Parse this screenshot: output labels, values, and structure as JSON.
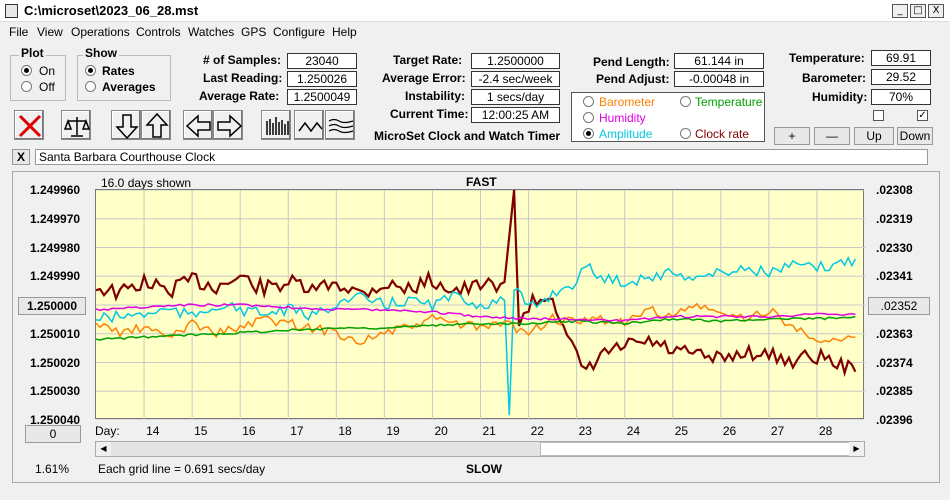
{
  "window": {
    "title": "C:\\microset\\2023_06_28.mst",
    "buttons": [
      "_",
      "□",
      "X"
    ]
  },
  "menu": [
    "File",
    "View",
    "Operations",
    "Controls",
    "Watches",
    "GPS",
    "Configure",
    "Help"
  ],
  "plot_group": {
    "title": "Plot",
    "options": [
      "On",
      "Off"
    ],
    "selected": "On"
  },
  "show_group": {
    "title": "Show",
    "options": [
      "Rates",
      "Averages"
    ],
    "selected": "Rates"
  },
  "stats": {
    "samples_label": "# of Samples:",
    "samples": "23040",
    "last_label": "Last Reading:",
    "last": "1.250026",
    "avg_label": "Average Rate:",
    "avg": "1.2500049",
    "target_label": "Target Rate:",
    "target": "1.2500000",
    "avgerr_label": "Average Error:",
    "avgerr": "-2.4 sec/week",
    "instab_label": "Instability:",
    "instab": "1 secs/day",
    "time_label": "Current Time:",
    "time": "12:00:25 AM",
    "pend_len_label": "Pend Length:",
    "pend_len": "61.144 in",
    "pend_adj_label": "Pend Adjust:",
    "pend_adj": "-0.00048 in",
    "temp_label": "Temperature:",
    "temp": "69.91",
    "baro_label": "Barometer:",
    "baro": "29.52",
    "hum_label": "Humidity:",
    "hum": "70%"
  },
  "app_name": "MicroSet Clock and Watch Timer",
  "series_options": [
    {
      "label": "Barometer",
      "color": "#ff8000",
      "selected": false
    },
    {
      "label": "Temperature",
      "color": "#00a000",
      "selected": false
    },
    {
      "label": "Humidity",
      "color": "#e000e0",
      "selected": false
    },
    {
      "label": "Amplitude",
      "color": "#00c8e0",
      "selected": true
    },
    {
      "label": "Clock rate",
      "color": "#800000",
      "selected": false
    }
  ],
  "small_buttons": {
    "plus": "+",
    "minus": "—",
    "up": "Up",
    "down": "Down"
  },
  "checkboxes": [
    {
      "checked": false
    },
    {
      "checked": true
    }
  ],
  "clock_name": "Santa Barbara Courthouse Clock",
  "close_glyph": "X",
  "chart": {
    "days_shown": "16.0 days shown",
    "top_label": "FAST",
    "bottom_label": "SLOW",
    "day_prefix": "Day:",
    "grid_note": "Each grid line = 0.691 secs/day",
    "percent": "1.61%",
    "left_button": "1.250000",
    "right_button": ".02352",
    "zero_button": "0"
  },
  "chart_data": {
    "type": "line",
    "title": "",
    "x": [
      14,
      15,
      16,
      17,
      18,
      19,
      20,
      21,
      22,
      23,
      24,
      25,
      26,
      27,
      28
    ],
    "left_axis_ticks": [
      "1.249960",
      "1.249970",
      "1.249980",
      "1.249990",
      "1.250000",
      "1.250010",
      "1.250020",
      "1.250030",
      "1.250040"
    ],
    "right_axis_ticks": [
      ".02308",
      ".02319",
      ".02330",
      ".02341",
      ".02352",
      ".02363",
      ".02374",
      ".02385",
      ".02396"
    ],
    "xlim": [
      13.0,
      29.0
    ],
    "grid": true,
    "series": [
      {
        "name": "Clock rate",
        "color": "#800000",
        "points": [
          [
            13.0,
            0.42
          ],
          [
            13.5,
            0.45
          ],
          [
            14.0,
            0.4
          ],
          [
            14.5,
            0.44
          ],
          [
            15.0,
            0.39
          ],
          [
            15.5,
            0.42
          ],
          [
            16.0,
            0.38
          ],
          [
            16.5,
            0.43
          ],
          [
            17.0,
            0.4
          ],
          [
            17.5,
            0.44
          ],
          [
            18.0,
            0.4
          ],
          [
            18.5,
            0.45
          ],
          [
            19.0,
            0.41
          ],
          [
            19.5,
            0.43
          ],
          [
            20.0,
            0.39
          ],
          [
            20.5,
            0.44
          ],
          [
            21.0,
            0.42
          ],
          [
            21.5,
            0.4
          ],
          [
            21.7,
            0.0
          ],
          [
            21.8,
            0.6
          ],
          [
            22.0,
            0.5
          ],
          [
            22.5,
            0.45
          ],
          [
            22.8,
            0.66
          ],
          [
            23.0,
            0.72
          ],
          [
            23.2,
            0.8
          ],
          [
            23.5,
            0.72
          ],
          [
            24.0,
            0.68
          ],
          [
            24.5,
            0.66
          ],
          [
            25.0,
            0.7
          ],
          [
            25.5,
            0.72
          ],
          [
            26.0,
            0.74
          ],
          [
            26.5,
            0.7
          ],
          [
            27.0,
            0.72
          ],
          [
            27.5,
            0.74
          ],
          [
            28.0,
            0.72
          ],
          [
            28.5,
            0.76
          ],
          [
            28.8,
            0.79
          ]
        ]
      },
      {
        "name": "Amplitude",
        "color": "#00c8e0",
        "points": [
          [
            13.0,
            0.56
          ],
          [
            13.5,
            0.55
          ],
          [
            14.0,
            0.54
          ],
          [
            14.5,
            0.52
          ],
          [
            15.0,
            0.55
          ],
          [
            15.5,
            0.5
          ],
          [
            16.0,
            0.52
          ],
          [
            16.5,
            0.54
          ],
          [
            17.0,
            0.52
          ],
          [
            17.5,
            0.55
          ],
          [
            18.0,
            0.49
          ],
          [
            18.5,
            0.47
          ],
          [
            19.0,
            0.5
          ],
          [
            19.5,
            0.48
          ],
          [
            20.0,
            0.5
          ],
          [
            20.5,
            0.46
          ],
          [
            21.0,
            0.5
          ],
          [
            21.5,
            0.48
          ],
          [
            21.6,
            0.98
          ],
          [
            21.7,
            0.42
          ],
          [
            22.0,
            0.52
          ],
          [
            22.5,
            0.45
          ],
          [
            23.0,
            0.4
          ],
          [
            23.2,
            0.33
          ],
          [
            23.5,
            0.38
          ],
          [
            24.0,
            0.4
          ],
          [
            24.5,
            0.38
          ],
          [
            25.0,
            0.36
          ],
          [
            25.5,
            0.38
          ],
          [
            26.0,
            0.36
          ],
          [
            26.5,
            0.34
          ],
          [
            27.0,
            0.36
          ],
          [
            27.5,
            0.33
          ],
          [
            28.0,
            0.34
          ],
          [
            28.5,
            0.32
          ],
          [
            28.8,
            0.3
          ]
        ]
      },
      {
        "name": "Barometer",
        "color": "#ff8000",
        "points": [
          [
            13.0,
            0.58
          ],
          [
            13.5,
            0.62
          ],
          [
            14.0,
            0.6
          ],
          [
            14.5,
            0.64
          ],
          [
            15.0,
            0.58
          ],
          [
            15.5,
            0.62
          ],
          [
            16.0,
            0.6
          ],
          [
            16.5,
            0.56
          ],
          [
            17.0,
            0.58
          ],
          [
            17.5,
            0.6
          ],
          [
            18.0,
            0.62
          ],
          [
            18.5,
            0.66
          ],
          [
            19.0,
            0.62
          ],
          [
            19.5,
            0.6
          ],
          [
            20.0,
            0.56
          ],
          [
            20.5,
            0.58
          ],
          [
            21.0,
            0.6
          ],
          [
            21.5,
            0.58
          ],
          [
            22.0,
            0.62
          ],
          [
            22.5,
            0.56
          ],
          [
            23.0,
            0.58
          ],
          [
            23.5,
            0.56
          ],
          [
            24.0,
            0.58
          ],
          [
            24.5,
            0.52
          ],
          [
            25.0,
            0.55
          ],
          [
            25.5,
            0.5
          ],
          [
            26.0,
            0.54
          ],
          [
            26.5,
            0.56
          ],
          [
            27.0,
            0.52
          ],
          [
            27.5,
            0.6
          ],
          [
            28.0,
            0.64
          ],
          [
            28.5,
            0.66
          ],
          [
            28.8,
            0.64
          ]
        ]
      },
      {
        "name": "Temperature",
        "color": "#00a000",
        "points": [
          [
            13.0,
            0.65
          ],
          [
            14.0,
            0.64
          ],
          [
            15.0,
            0.63
          ],
          [
            16.0,
            0.62
          ],
          [
            17.0,
            0.61
          ],
          [
            18.0,
            0.6
          ],
          [
            19.0,
            0.6
          ],
          [
            20.0,
            0.59
          ],
          [
            21.0,
            0.58
          ],
          [
            22.0,
            0.58
          ],
          [
            23.0,
            0.57
          ],
          [
            24.0,
            0.58
          ],
          [
            25.0,
            0.56
          ],
          [
            26.0,
            0.57
          ],
          [
            27.0,
            0.56
          ],
          [
            28.0,
            0.56
          ],
          [
            28.8,
            0.55
          ]
        ]
      },
      {
        "name": "Humidity",
        "color": "#e000e0",
        "points": [
          [
            13.0,
            0.52
          ],
          [
            14.0,
            0.51
          ],
          [
            15.0,
            0.5
          ],
          [
            16.0,
            0.5
          ],
          [
            17.0,
            0.51
          ],
          [
            18.0,
            0.52
          ],
          [
            19.0,
            0.52
          ],
          [
            20.0,
            0.53
          ],
          [
            21.0,
            0.55
          ],
          [
            22.0,
            0.56
          ],
          [
            23.0,
            0.56
          ],
          [
            24.0,
            0.57
          ],
          [
            25.0,
            0.55
          ],
          [
            26.0,
            0.55
          ],
          [
            27.0,
            0.55
          ],
          [
            28.0,
            0.54
          ],
          [
            28.8,
            0.54
          ]
        ]
      }
    ]
  }
}
